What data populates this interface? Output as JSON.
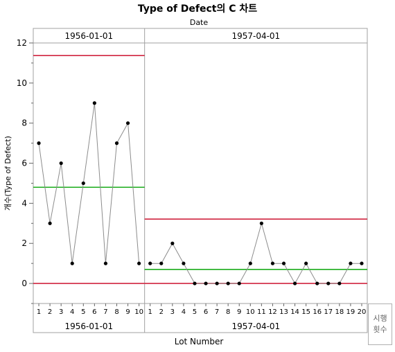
{
  "chart_data": {
    "type": "line",
    "title": "Type of Defect의 C 차트",
    "group_axis_label": "Date",
    "xlabel": "Lot Number",
    "ylabel": "개수(Type of Defect)",
    "ylim": [
      -1,
      12
    ],
    "yticks": [
      0,
      2,
      4,
      6,
      8,
      10,
      12
    ],
    "grid": false,
    "corner_button": [
      "시행",
      "횟수"
    ],
    "phases": [
      {
        "name": "1956-01-01",
        "x": [
          1,
          2,
          3,
          4,
          5,
          6,
          7,
          8,
          9,
          10
        ],
        "values": [
          7,
          3,
          6,
          1,
          5,
          9,
          1,
          7,
          8,
          1
        ],
        "center_line": 4.8,
        "ucl": 11.37,
        "lcl": 0
      },
      {
        "name": "1957-04-01",
        "x": [
          1,
          2,
          3,
          4,
          5,
          6,
          7,
          8,
          9,
          10,
          11,
          12,
          13,
          14,
          15,
          16,
          17,
          18,
          19,
          20
        ],
        "values": [
          1,
          1,
          2,
          1,
          0,
          0,
          0,
          0,
          0,
          1,
          3,
          1,
          1,
          0,
          1,
          0,
          0,
          0,
          1,
          1
        ],
        "center_line": 0.7,
        "ucl": 3.21,
        "lcl": 0
      }
    ],
    "colors": {
      "limit": "#d0243f",
      "center": "#1aac1a",
      "line": "#8c8c8c",
      "point": "#000000",
      "frame": "#a0a0a0"
    }
  }
}
